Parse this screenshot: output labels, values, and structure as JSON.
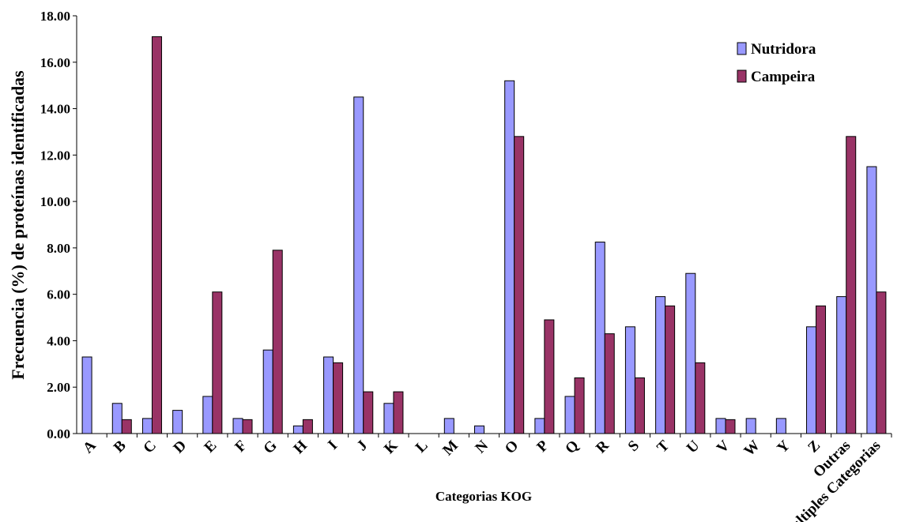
{
  "chart_data": {
    "type": "bar",
    "x_label": "Categorias KOG",
    "y_label": "Frecuencia (%) de proteínas identificadas",
    "categories": [
      "A",
      "B",
      "C",
      "D",
      "E",
      "F",
      "G",
      "H",
      "I",
      "J",
      "K",
      "L",
      "M",
      "N",
      "O",
      "P",
      "Q",
      "R",
      "S",
      "T",
      "U",
      "V",
      "W",
      "Y",
      "Z",
      "Outras",
      "Multiples Categorias"
    ],
    "series": [
      {
        "name": "Nutridora",
        "color": "#9999ff",
        "values": [
          3.3,
          1.3,
          0.65,
          1.0,
          1.6,
          0.65,
          3.6,
          0.33,
          3.3,
          14.5,
          1.3,
          0,
          0.65,
          0.33,
          15.2,
          0.65,
          1.6,
          8.25,
          4.6,
          5.9,
          6.9,
          0.65,
          0.65,
          0.65,
          4.6,
          5.9,
          11.5
        ]
      },
      {
        "name": "Campeira",
        "color": "#993366",
        "values": [
          0,
          0.6,
          17.1,
          0,
          6.1,
          0.6,
          7.9,
          0.6,
          3.05,
          1.8,
          1.8,
          0,
          0,
          0,
          12.8,
          4.9,
          2.4,
          4.3,
          2.4,
          5.5,
          3.05,
          0.6,
          0,
          0,
          5.5,
          12.8,
          6.1
        ]
      }
    ],
    "ylim": [
      0,
      18
    ],
    "yticks": [
      {
        "value": 0,
        "label": "0.00"
      },
      {
        "value": 2,
        "label": "2.00"
      },
      {
        "value": 4,
        "label": "4.00"
      },
      {
        "value": 6,
        "label": "6.00"
      },
      {
        "value": 8,
        "label": "8.00"
      },
      {
        "value": 10,
        "label": "10.00"
      },
      {
        "value": 12,
        "label": "12.00"
      },
      {
        "value": 14,
        "label": "14.00"
      },
      {
        "value": 16,
        "label": "16.00"
      },
      {
        "value": 18,
        "label": "18.00"
      }
    ],
    "grid": false,
    "legend": "upper right"
  }
}
